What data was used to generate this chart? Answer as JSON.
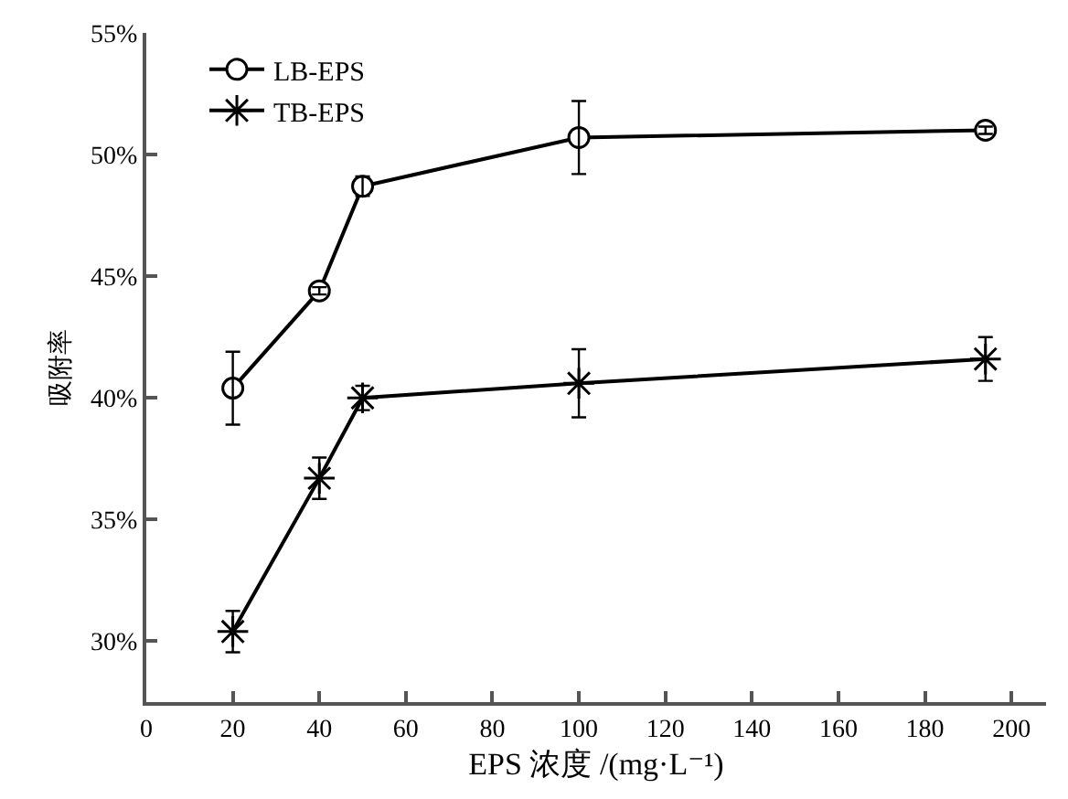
{
  "chart_data": {
    "type": "line",
    "xlabel": "EPS 浓度 /(mg·L⁻¹)",
    "ylabel": "吸附率",
    "x": [
      20,
      40,
      50,
      100,
      194
    ],
    "series": [
      {
        "name": "LB-EPS",
        "color": "#000000",
        "marker": "circle",
        "values": [
          40.4,
          44.4,
          48.7,
          50.7,
          51.0
        ],
        "errors": [
          1.5,
          0.15,
          0.4,
          1.5,
          0.15
        ]
      },
      {
        "name": "TB-EPS",
        "color": "#000000",
        "marker": "cross",
        "values": [
          30.4,
          36.7,
          40.0,
          40.6,
          41.6
        ],
        "errors": [
          0.85,
          0.85,
          0.5,
          1.4,
          0.9
        ]
      }
    ],
    "xlim": [
      0,
      208
    ],
    "xticks": [
      0,
      20,
      40,
      60,
      80,
      100,
      120,
      140,
      160,
      180,
      200
    ],
    "ylim": [
      27.5,
      55
    ],
    "yticks": [
      {
        "value": 30,
        "label": "30%"
      },
      {
        "value": 35,
        "label": "35%"
      },
      {
        "value": 40,
        "label": "40%"
      },
      {
        "value": 45,
        "label": "45%"
      },
      {
        "value": 50,
        "label": "50%"
      },
      {
        "value": 55,
        "label": "55%"
      }
    ],
    "grid": false,
    "legend": "top left",
    "line_style": "solid"
  }
}
